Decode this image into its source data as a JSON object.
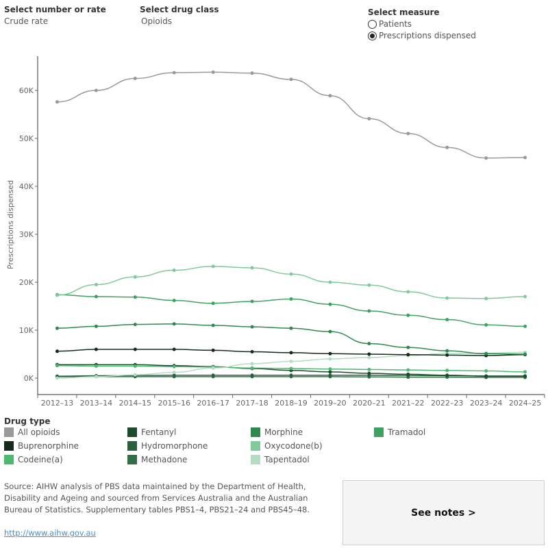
{
  "controls": {
    "number_or_rate": {
      "label": "Select number or rate",
      "value": "Crude rate"
    },
    "drug_class": {
      "label": "Select drug class",
      "value": "Opioids"
    },
    "measure": {
      "label": "Select measure",
      "options": [
        {
          "label": "Patients",
          "selected": false
        },
        {
          "label": "Prescriptions dispensed",
          "selected": true
        }
      ]
    }
  },
  "chart_data": {
    "type": "line",
    "xlabel": "",
    "ylabel": "Prescriptions dispensed",
    "ylim": [
      0,
      67000
    ],
    "yticks": [
      0,
      10000,
      20000,
      30000,
      40000,
      50000,
      60000
    ],
    "ytick_labels": [
      "0K",
      "10K",
      "20K",
      "30K",
      "40K",
      "50K",
      "60K"
    ],
    "grid": false,
    "categories": [
      "2012–13",
      "2013–14",
      "2014–15",
      "2015–16",
      "2016–17",
      "2017–18",
      "2018–19",
      "2019–20",
      "2020–21",
      "2021–22",
      "2022–23",
      "2023–24",
      "2024–25"
    ],
    "series": [
      {
        "name": "All opioids",
        "color": "#999999",
        "values": [
          57600,
          60000,
          62500,
          63700,
          63800,
          63600,
          62300,
          58900,
          54100,
          51000,
          48100,
          45900,
          46000
        ]
      },
      {
        "name": "Oxycodone(b)",
        "color": "#7fc99a",
        "values": [
          17300,
          19500,
          21100,
          22500,
          23300,
          23000,
          21700,
          20000,
          19400,
          18000,
          16700,
          16600,
          17000
        ]
      },
      {
        "name": "Tramadol",
        "color": "#3fa060",
        "values": [
          17400,
          17000,
          16900,
          16200,
          15600,
          16000,
          16500,
          15400,
          14000,
          13100,
          12200,
          11100,
          10800
        ]
      },
      {
        "name": "Morphine",
        "color": "#2d8a4c",
        "values": [
          10400,
          10800,
          11200,
          11300,
          11000,
          10700,
          10400,
          9700,
          7200,
          6400,
          5700,
          5100,
          5000
        ]
      },
      {
        "name": "Buprenorphine",
        "color": "#142a1c",
        "values": [
          5600,
          6000,
          6000,
          6000,
          5800,
          5500,
          5300,
          5100,
          5000,
          4900,
          4800,
          4700,
          4900
        ]
      },
      {
        "name": "Tapentadol",
        "color": "#b4dcc0",
        "values": [
          0,
          300,
          700,
          1200,
          2100,
          3000,
          3500,
          4000,
          4300,
          4700,
          5100,
          5200,
          5400
        ]
      },
      {
        "name": "Codeine(a)",
        "color": "#4cb870",
        "values": [
          2600,
          2500,
          2500,
          2400,
          2300,
          2100,
          2000,
          1900,
          1800,
          1700,
          1600,
          1500,
          1300
        ]
      },
      {
        "name": "Fentanyl",
        "color": "#1e4a2c",
        "values": [
          2800,
          2800,
          2800,
          2600,
          2400,
          2000,
          1600,
          1300,
          1000,
          800,
          600,
          400,
          400
        ]
      },
      {
        "name": "Hydromorphone",
        "color": "#2a5e3c",
        "values": [
          400,
          500,
          550,
          600,
          600,
          600,
          600,
          600,
          600,
          550,
          500,
          450,
          450
        ]
      },
      {
        "name": "Methadone",
        "color": "#336e48",
        "values": [
          300,
          300,
          300,
          300,
          300,
          300,
          300,
          300,
          250,
          200,
          200,
          150,
          150
        ]
      }
    ]
  },
  "legend": {
    "title": "Drug type",
    "items": [
      {
        "name": "All opioids",
        "color": "#999999"
      },
      {
        "name": "Buprenorphine",
        "color": "#142a1c"
      },
      {
        "name": "Codeine(a)",
        "color": "#4cb870"
      },
      {
        "name": "Fentanyl",
        "color": "#1e4a2c"
      },
      {
        "name": "Hydromorphone",
        "color": "#2a5e3c"
      },
      {
        "name": "Methadone",
        "color": "#336e48"
      },
      {
        "name": "Morphine",
        "color": "#2d8a4c"
      },
      {
        "name": "Oxycodone(b)",
        "color": "#7fc99a"
      },
      {
        "name": "Tapentadol",
        "color": "#b4dcc0"
      },
      {
        "name": "Tramadol",
        "color": "#3fa060"
      }
    ]
  },
  "footer": {
    "source": "Source: AIHW analysis of PBS data maintained by the Department of Health, Disability and Ageing and sourced from Services Australia and the Australian Bureau of Statistics. Supplementary tables PBS1–4, PBS21–24 and PBS45–48.",
    "link": "http://www.aihw.gov.au",
    "notes_button": "See notes >"
  }
}
